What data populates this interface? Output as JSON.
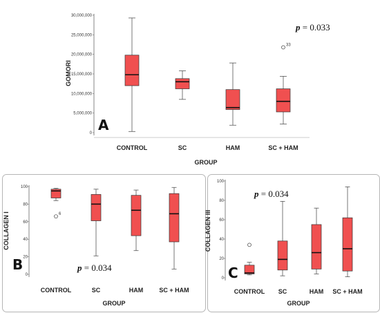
{
  "chart_data": [
    {
      "type": "box",
      "panel_label": "A",
      "p_value": {
        "prefix": "p",
        "rest": " = 0.033"
      },
      "xlabel": "GROUP",
      "ylabel": "GOMORI",
      "ylim": [
        0,
        30000000
      ],
      "yticks": [
        0,
        5000000,
        10000000,
        15000000,
        20000000,
        25000000,
        30000000
      ],
      "ytick_labels": [
        "0",
        "5,000,000",
        "10,000,000",
        "15,000,000",
        "20,000,000",
        "25,000,000",
        "30,000,000"
      ],
      "categories": [
        "CONTROL",
        "SC",
        "HAM",
        "SC + HAM"
      ],
      "box_color": "#f05050",
      "boxes": [
        {
          "min": 300000,
          "q1": 12000000,
          "median": 14800000,
          "q3": 19800000,
          "max": 29300000
        },
        {
          "min": 8500000,
          "q1": 11200000,
          "median": 13000000,
          "q3": 13800000,
          "max": 15800000
        },
        {
          "min": 1900000,
          "q1": 5900000,
          "median": 6400000,
          "q3": 11000000,
          "max": 17800000
        },
        {
          "min": 2200000,
          "q1": 5300000,
          "median": 8000000,
          "q3": 11200000,
          "max": 14400000
        }
      ],
      "outliers": [
        {
          "category": "SC + HAM",
          "value": 21800000,
          "label": "33"
        }
      ]
    },
    {
      "type": "box",
      "panel_label": "B",
      "p_value": {
        "prefix": "p",
        "rest": " = 0.034"
      },
      "xlabel": "GROUP",
      "ylabel": "COLLAGEN I",
      "ylim": [
        0,
        100
      ],
      "yticks": [
        0,
        20,
        40,
        60,
        80,
        100
      ],
      "ytick_labels": [
        "0",
        "20",
        "40",
        "60",
        "80",
        "100"
      ],
      "categories": [
        "CONTROL",
        "SC",
        "HAM",
        "SC + HAM"
      ],
      "box_color": "#f05050",
      "boxes": [
        {
          "min": 84,
          "q1": 87,
          "median": 95,
          "q3": 97,
          "max": 98
        },
        {
          "min": 21,
          "q1": 61,
          "median": 80,
          "q3": 91,
          "max": 97
        },
        {
          "min": 27,
          "q1": 44,
          "median": 73,
          "q3": 90,
          "max": 96
        },
        {
          "min": 6,
          "q1": 37,
          "median": 69,
          "q3": 92,
          "max": 99
        }
      ],
      "outliers": [
        {
          "category": "CONTROL",
          "value": 66,
          "label": "6"
        }
      ]
    },
    {
      "type": "box",
      "panel_label": "C",
      "p_value": {
        "prefix": "p",
        "rest": " = 0.034"
      },
      "xlabel": "GROUP",
      "ylabel": "COLLAGEN III",
      "ylim": [
        0,
        100
      ],
      "yticks": [
        0,
        20,
        40,
        60,
        80,
        100
      ],
      "ytick_labels": [
        "0",
        "20",
        "40",
        "60",
        "80",
        "100"
      ],
      "categories": [
        "CONTROL",
        "SC",
        "HAM",
        "SC + HAM"
      ],
      "box_color": "#f05050",
      "boxes": [
        {
          "min": 3,
          "q1": 4,
          "median": 5,
          "q3": 13,
          "max": 16
        },
        {
          "min": 2,
          "q1": 8,
          "median": 19,
          "q3": 38,
          "max": 79
        },
        {
          "min": 4,
          "q1": 9,
          "median": 26,
          "q3": 55,
          "max": 72
        },
        {
          "min": 1,
          "q1": 7,
          "median": 30,
          "q3": 62,
          "max": 94
        }
      ],
      "outliers": [
        {
          "category": "CONTROL",
          "value": 34,
          "label": ""
        }
      ]
    }
  ]
}
